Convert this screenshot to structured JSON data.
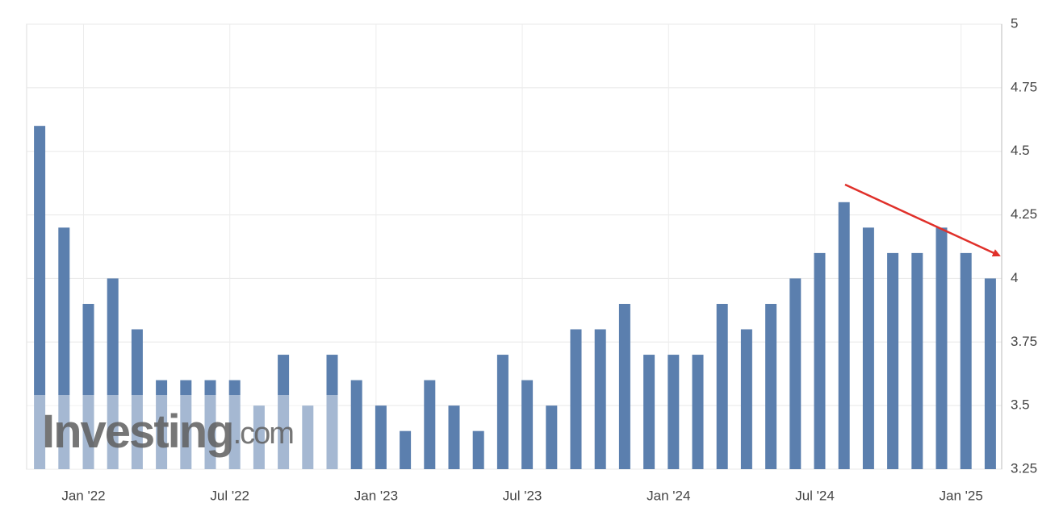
{
  "chart_data": {
    "type": "bar",
    "categories": [
      null,
      null,
      "Jan '22",
      null,
      null,
      null,
      null,
      null,
      "Jul '22",
      null,
      null,
      null,
      null,
      null,
      "Jan '23",
      null,
      null,
      null,
      null,
      null,
      "Jul '23",
      null,
      null,
      null,
      null,
      null,
      "Jan '24",
      null,
      null,
      null,
      null,
      null,
      "Jul '24",
      null,
      null,
      null,
      null,
      null,
      "Jan '25",
      null
    ],
    "values": [
      4.6,
      4.2,
      3.9,
      4.0,
      3.8,
      3.6,
      3.6,
      3.6,
      3.6,
      3.5,
      3.7,
      3.5,
      3.7,
      3.6,
      3.5,
      3.4,
      3.6,
      3.5,
      3.4,
      3.7,
      3.6,
      3.5,
      3.8,
      3.8,
      3.9,
      3.7,
      3.7,
      3.7,
      3.9,
      3.8,
      3.9,
      4.0,
      4.1,
      4.3,
      4.2,
      4.1,
      4.1,
      4.2,
      4.1,
      4.0
    ],
    "color": "#5b7fae",
    "ylim": [
      3.25,
      5
    ],
    "yticks": [
      3.25,
      3.5,
      3.75,
      4,
      4.25,
      4.5,
      4.75,
      5
    ],
    "grid": true,
    "y_axis_side": "right",
    "watermark": {
      "brand": "Investing",
      "domain": ".com"
    }
  }
}
